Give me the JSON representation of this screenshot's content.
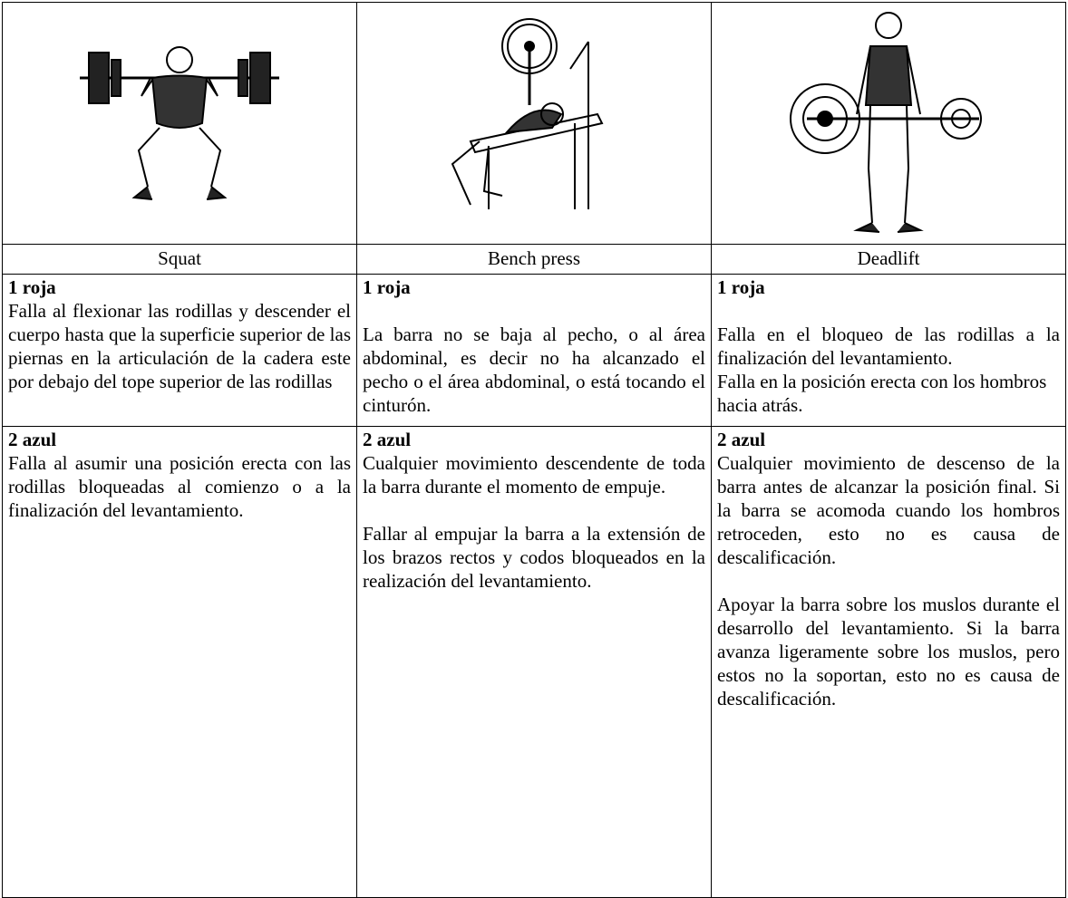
{
  "table": {
    "headers": [
      "Squat",
      "Bench press",
      "Deadlift"
    ],
    "rows": [
      [
        {
          "title": "1 roja",
          "paragraphs": [
            "Falla al flexionar  las rodillas y descender el cuerpo hasta que la superficie superior de las piernas en la articulación de la cadera este por debajo del tope superior de las rodillas"
          ]
        },
        {
          "title": "1 roja",
          "paragraphs": [
            "La barra no se baja al pecho, o al área abdominal,  es decir no ha alcanzado el pecho o el área abdominal, o está tocando el cinturón."
          ]
        },
        {
          "title": "1 roja",
          "paragraphs": [
            "Falla en el bloqueo de las rodillas a la finalización del levantamiento.",
            "Falla en la posición erecta con los hombros hacia atrás."
          ]
        }
      ],
      [
        {
          "title": "2 azul",
          "paragraphs": [
            "Falla al asumir una posición erecta con las rodillas bloqueadas al comienzo o a la finalización del levantamiento."
          ]
        },
        {
          "title": "2 azul",
          "paragraphs": [
            "Cualquier movimiento descendente de toda la barra durante el momento de empuje.",
            "Fallar al empujar la barra a la extensión de los brazos rectos y codos bloqueados en la realización del levantamiento."
          ]
        },
        {
          "title": "2 azul",
          "paragraphs": [
            "Cualquier movimiento de descenso de la barra antes de alcanzar la posición final. Si la barra se acomoda cuando los hombros retroceden, esto no es causa de descalificación.",
            "Apoyar la barra sobre los muslos durante el desarrollo del levantamiento. Si la barra avanza ligeramente sobre los muslos, pero estos no la soportan, esto no es causa de descalificación."
          ]
        }
      ]
    ]
  }
}
